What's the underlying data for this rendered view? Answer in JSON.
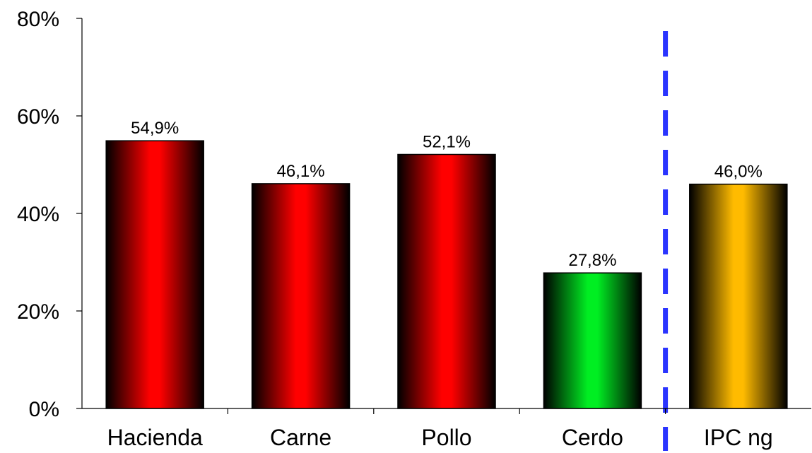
{
  "chart_data": {
    "type": "bar",
    "title": "",
    "xlabel": "",
    "ylabel": "",
    "ylim": [
      0,
      80
    ],
    "yticks": [
      0,
      20,
      40,
      60,
      80
    ],
    "ytick_labels": [
      "0%",
      "20%",
      "40%",
      "60%",
      "80%"
    ],
    "categories": [
      "Hacienda",
      "Carne",
      "Pollo",
      "Cerdo",
      "IPC ng"
    ],
    "values": [
      54.9,
      46.1,
      52.1,
      27.8,
      46.0
    ],
    "data_labels": [
      "54,9%",
      "46,1%",
      "52,1%",
      "27,8%",
      "46,0%"
    ],
    "bar_colors": [
      "#ff0000",
      "#ff0000",
      "#ff0000",
      "#00ee22",
      "#ffbb00"
    ],
    "grid": false,
    "legend": "none",
    "separator": {
      "style": "dashed",
      "color": "#2a34ff",
      "after_category_index": 3
    }
  }
}
